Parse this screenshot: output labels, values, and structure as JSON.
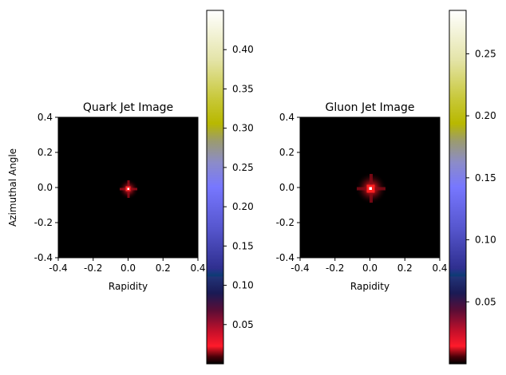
{
  "chart_data": [
    {
      "type": "heatmap",
      "title": "Quark Jet Image",
      "xlabel": "Rapidity",
      "ylabel": "Azimuthal Angle",
      "xlim": [
        -0.4,
        0.4
      ],
      "ylim": [
        -0.4,
        0.4
      ],
      "xticks": [
        "-0.4",
        "-0.2",
        "0.0",
        "0.2",
        "0.4"
      ],
      "yticks": [
        "-0.4",
        "-0.2",
        "0.0",
        "0.2",
        "0.4"
      ],
      "center": [
        0.0,
        0.0
      ],
      "peak_value": 0.45,
      "colorbar": {
        "range": [
          0.0,
          0.45
        ],
        "ticks": [
          "0.05",
          "0.10",
          "0.15",
          "0.20",
          "0.25",
          "0.30",
          "0.35",
          "0.40"
        ],
        "tick_values": [
          0.05,
          0.1,
          0.15,
          0.2,
          0.25,
          0.3,
          0.35,
          0.4
        ],
        "colormap": "gist_stern_r"
      }
    },
    {
      "type": "heatmap",
      "title": "Gluon Jet Image",
      "xlabel": "Rapidity",
      "ylabel": "",
      "xlim": [
        -0.4,
        0.4
      ],
      "ylim": [
        -0.4,
        0.4
      ],
      "xticks": [
        "-0.4",
        "-0.2",
        "0.0",
        "0.2",
        "0.4"
      ],
      "yticks": [
        "-0.4",
        "-0.2",
        "0.0",
        "0.2",
        "0.4"
      ],
      "center": [
        0.0,
        0.0
      ],
      "peak_value": 0.285,
      "colorbar": {
        "range": [
          0.0,
          0.285
        ],
        "ticks": [
          "0.05",
          "0.10",
          "0.15",
          "0.20",
          "0.25"
        ],
        "tick_values": [
          0.05,
          0.1,
          0.15,
          0.2,
          0.25
        ],
        "colormap": "gist_stern_r"
      }
    }
  ]
}
